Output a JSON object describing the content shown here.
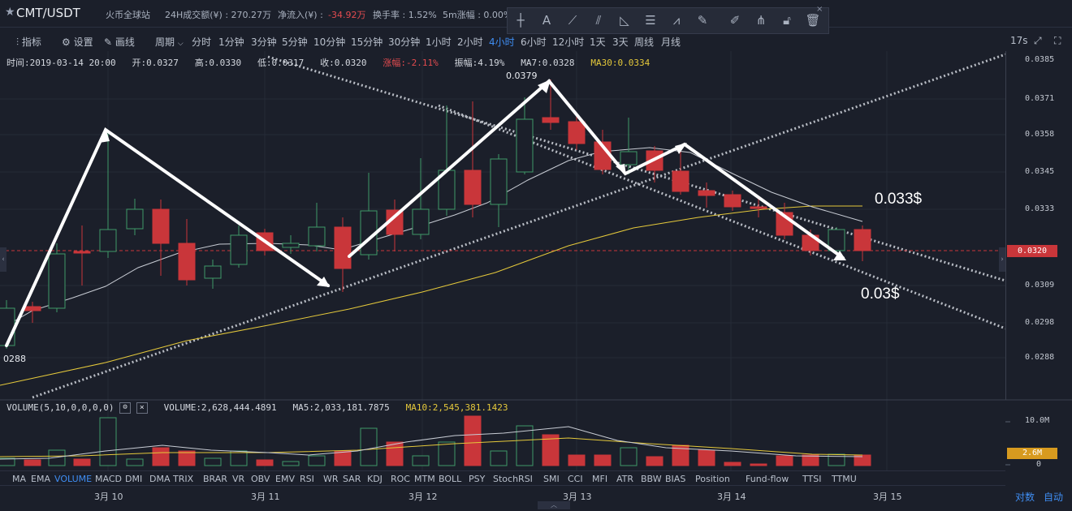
{
  "header": {
    "pair": "CMT/USDT",
    "exchange": "火币全球站",
    "vol24h": "24H成交额(¥) : 270.27万",
    "netinflow_label": "净流入(¥) : ",
    "netinflow_value": "-34.92万",
    "turnover": "换手率 : 1.52%",
    "change5m": "5m涨幅 : 0.00%"
  },
  "drawtools": [
    "crosshair-icon",
    "text-icon",
    "line-icon",
    "multi-line-icon",
    "angle-icon",
    "parallel-icon",
    "wave-icon",
    "ruler-icon",
    "brush-icon",
    "fork-icon",
    "lock-icon",
    "trash-icon"
  ],
  "toolbar": {
    "indicators": "指标",
    "settings": "设置",
    "drawline": "画线",
    "period_label": "周期",
    "periods": [
      "分时",
      "1分钟",
      "3分钟",
      "5分钟",
      "10分钟",
      "15分钟",
      "30分钟",
      "1小时",
      "2小时",
      "4小时",
      "6小时",
      "12小时",
      "1天",
      "3天",
      "周线",
      "月线"
    ],
    "active_period": "4小时",
    "refresh": "17s"
  },
  "ohlc": {
    "time": "时间:2019-03-14 20:00",
    "open": "开:0.0327",
    "high": "高:0.0330",
    "low": "低:0.0317",
    "close": "收:0.0320",
    "change": "涨幅:-2.11%",
    "amplitude": "振幅:4.19%",
    "ma7": "MA7:0.0328",
    "ma30": "MA30:0.0334"
  },
  "yaxis": {
    "ticks": [
      "0.0385",
      "0.0371",
      "0.0358",
      "0.0345",
      "0.0333",
      "0.0320",
      "0.0309",
      "0.0298",
      "0.0288"
    ],
    "last_price": "0.0320",
    "vol_ticks": [
      "10.0M",
      "2.6M",
      "0"
    ]
  },
  "annotations": {
    "high_label": "0.0379",
    "low_label": "0288",
    "target1": "0.033$",
    "target2": "0.03$"
  },
  "volume": {
    "label": "VOLUME(5,10,0,0,0,0)",
    "value": "VOLUME:2,628,444.4891",
    "ma5": "MA5:2,033,181.7875",
    "ma10": "MA10:2,545,381.1423"
  },
  "indicators": {
    "items": [
      "MA",
      "EMA",
      "VOLUME",
      "MACD",
      "DMI",
      "DMA",
      "TRIX",
      "BRAR",
      "VR",
      "OBV",
      "EMV",
      "RSI",
      "WR",
      "SAR",
      "KDJ",
      "ROC",
      "MTM",
      "BOLL",
      "PSY",
      "StochRSI",
      "SMI",
      "CCI",
      "MFI",
      "ATR",
      "BBW",
      "BIAS",
      "Position",
      "Fund-flow",
      "TTSI",
      "TTMU"
    ],
    "active": "VOLUME"
  },
  "time_axis": [
    "3月 10",
    "3月 11",
    "3月 12",
    "3月 13",
    "3月 14",
    "3月 15"
  ],
  "bottom": {
    "log_scale": "对数",
    "auto_scale": "自动"
  },
  "colors": {
    "up": "#3f9a68",
    "down": "#c9363a",
    "ma30": "#e5c93b",
    "ma7": "#c8ccd4",
    "accent": "#3f8df2"
  }
}
